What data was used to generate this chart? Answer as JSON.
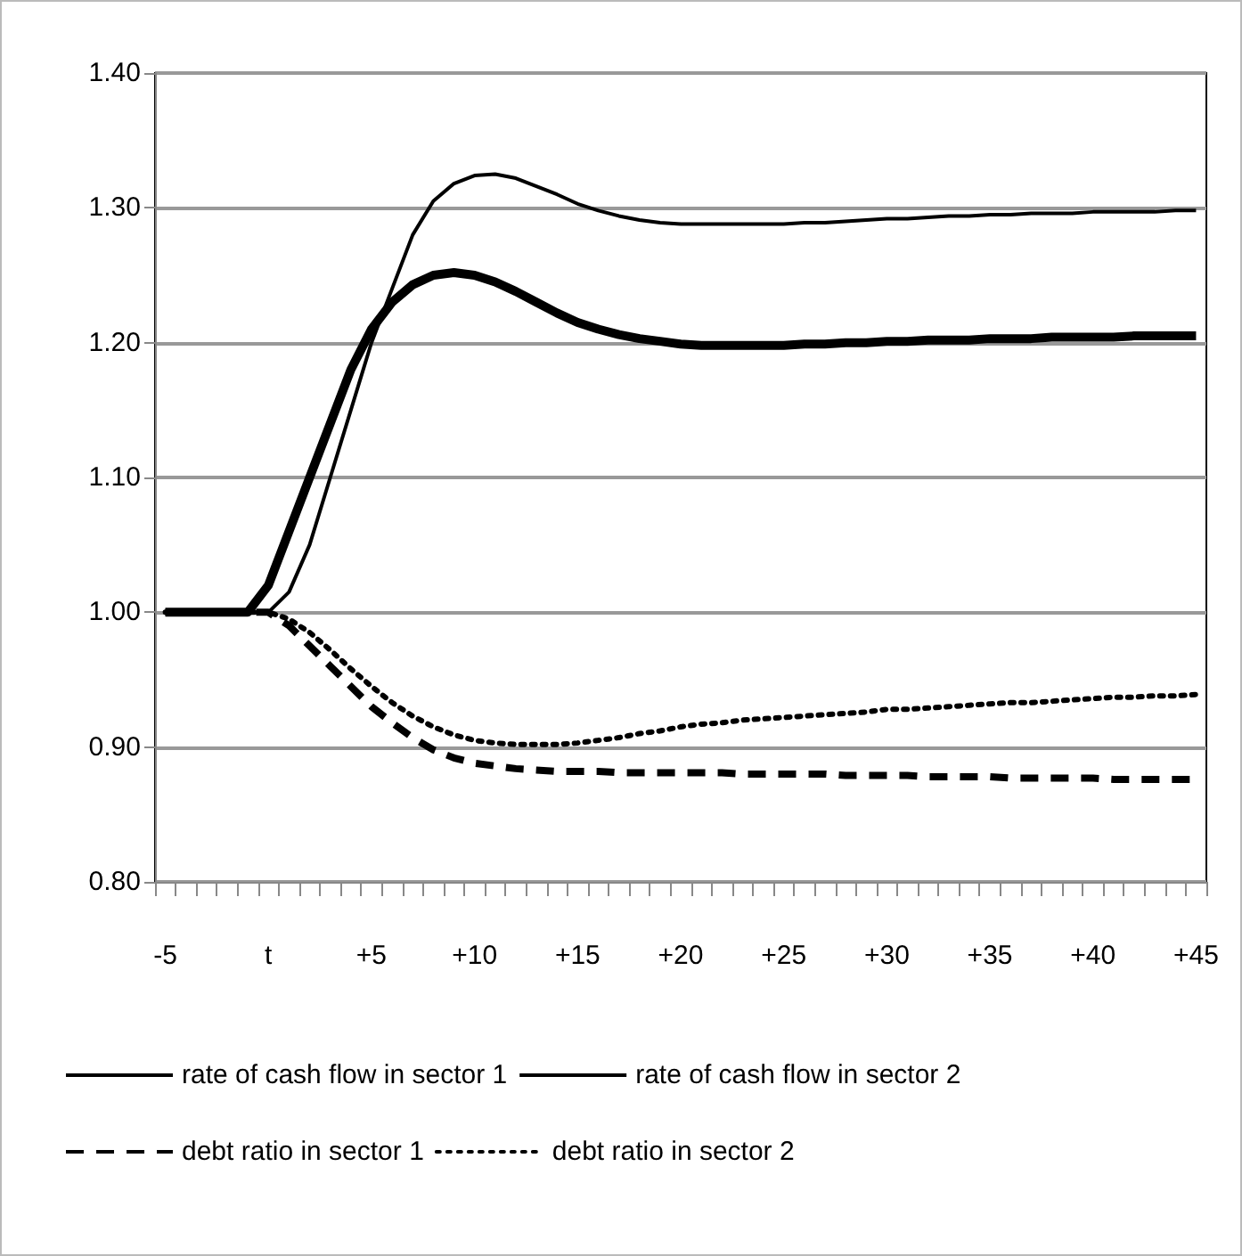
{
  "chart_data": {
    "type": "line",
    "categories": [
      "-5",
      null,
      null,
      null,
      null,
      "t",
      null,
      null,
      null,
      null,
      "+5",
      null,
      null,
      null,
      null,
      "+10",
      null,
      null,
      null,
      null,
      "+15",
      null,
      null,
      null,
      null,
      "+20",
      null,
      null,
      null,
      null,
      "+25",
      null,
      null,
      null,
      null,
      "+30",
      null,
      null,
      null,
      null,
      "+35",
      null,
      null,
      null,
      null,
      "+40",
      null,
      null,
      null,
      null,
      "+45"
    ],
    "ylim": [
      0.8,
      1.4
    ],
    "yticks": [
      {
        "value": 0.8,
        "label": "0.80"
      },
      {
        "value": 0.9,
        "label": "0.90"
      },
      {
        "value": 1.0,
        "label": "1.00"
      },
      {
        "value": 1.1,
        "label": "1.10"
      },
      {
        "value": 1.2,
        "label": "1.20"
      },
      {
        "value": 1.3,
        "label": "1.30"
      },
      {
        "value": 1.4,
        "label": "1.40"
      }
    ],
    "grid": "y",
    "legend": "bottom",
    "marker": "none",
    "series": [
      {
        "name": "rate of cash flow in sector 1",
        "color": "#000000",
        "line_style": "solid",
        "values": [
          1.0,
          1.0,
          1.0,
          1.0,
          1.0,
          1.02,
          1.06,
          1.1,
          1.14,
          1.18,
          1.21,
          1.23,
          1.243,
          1.25,
          1.252,
          1.25,
          1.245,
          1.238,
          1.23,
          1.222,
          1.215,
          1.21,
          1.206,
          1.203,
          1.201,
          1.199,
          1.198,
          1.198,
          1.198,
          1.198,
          1.198,
          1.199,
          1.199,
          1.2,
          1.2,
          1.201,
          1.201,
          1.202,
          1.202,
          1.202,
          1.203,
          1.203,
          1.203,
          1.204,
          1.204,
          1.204,
          1.204,
          1.205,
          1.205,
          1.205,
          1.205
        ]
      },
      {
        "name": "rate of cash flow in sector 2",
        "color": "#000000",
        "line_style": "solid",
        "values": [
          1.0,
          1.0,
          1.0,
          1.0,
          1.0,
          1.0,
          1.015,
          1.05,
          1.1,
          1.15,
          1.2,
          1.24,
          1.28,
          1.305,
          1.318,
          1.324,
          1.325,
          1.322,
          1.316,
          1.31,
          1.303,
          1.298,
          1.294,
          1.291,
          1.289,
          1.288,
          1.288,
          1.288,
          1.288,
          1.288,
          1.288,
          1.289,
          1.289,
          1.29,
          1.291,
          1.292,
          1.292,
          1.293,
          1.294,
          1.294,
          1.295,
          1.295,
          1.296,
          1.296,
          1.296,
          1.297,
          1.297,
          1.297,
          1.297,
          1.298,
          1.298
        ]
      },
      {
        "name": "debt ratio in sector 1",
        "color": "#000000",
        "line_style": "dashed",
        "values": [
          1.0,
          1.0,
          1.0,
          1.0,
          1.0,
          1.0,
          0.99,
          0.975,
          0.96,
          0.945,
          0.93,
          0.918,
          0.907,
          0.898,
          0.892,
          0.888,
          0.886,
          0.884,
          0.883,
          0.882,
          0.882,
          0.882,
          0.881,
          0.881,
          0.881,
          0.881,
          0.881,
          0.881,
          0.88,
          0.88,
          0.88,
          0.88,
          0.88,
          0.879,
          0.879,
          0.879,
          0.879,
          0.878,
          0.878,
          0.878,
          0.878,
          0.877,
          0.877,
          0.877,
          0.877,
          0.877,
          0.876,
          0.876,
          0.876,
          0.876,
          0.876
        ]
      },
      {
        "name": "debt ratio in sector 2",
        "color": "#000000",
        "line_style": "dotted",
        "values": [
          1.0,
          1.0,
          1.0,
          1.0,
          1.0,
          1.0,
          0.995,
          0.985,
          0.972,
          0.958,
          0.945,
          0.933,
          0.923,
          0.915,
          0.909,
          0.905,
          0.903,
          0.902,
          0.902,
          0.902,
          0.903,
          0.905,
          0.907,
          0.91,
          0.912,
          0.915,
          0.917,
          0.918,
          0.92,
          0.921,
          0.922,
          0.923,
          0.924,
          0.925,
          0.926,
          0.928,
          0.928,
          0.929,
          0.93,
          0.931,
          0.932,
          0.933,
          0.933,
          0.934,
          0.935,
          0.936,
          0.937,
          0.937,
          0.938,
          0.938,
          0.939
        ]
      }
    ]
  }
}
